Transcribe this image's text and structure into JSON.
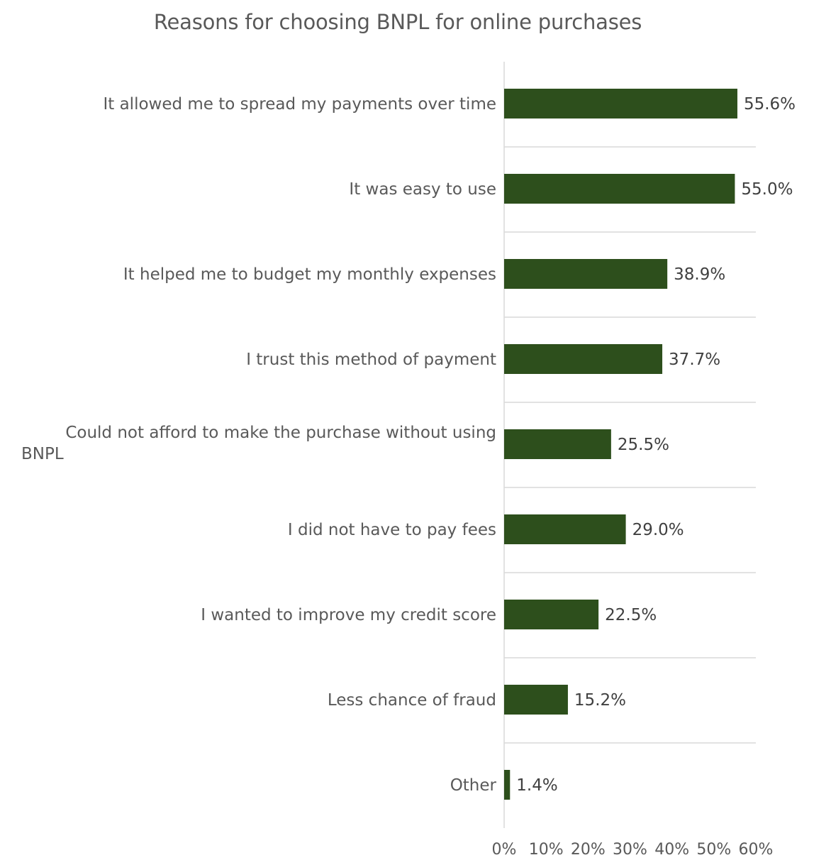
{
  "chart_data": {
    "type": "bar",
    "orientation": "horizontal",
    "title": "Reasons for choosing BNPL for online purchases",
    "categories": [
      "It allowed me to spread my payments over time",
      "It was easy to use",
      "It helped me to budget my monthly expenses",
      "I trust this method of payment",
      "Could not afford to make the purchase without using BNPL",
      "I did not have to pay fees",
      "I wanted to improve my credit score",
      "Less chance of fraud",
      "Other"
    ],
    "category_lines": [
      [
        "It allowed me to spread my payments over time"
      ],
      [
        "It was easy to use"
      ],
      [
        "It helped me to budget my monthly expenses"
      ],
      [
        "I trust this method of payment"
      ],
      [
        "Could not afford to make the purchase without using",
        "BNPL"
      ],
      [
        "I did not have to pay fees"
      ],
      [
        "I wanted to improve my credit score"
      ],
      [
        "Less chance of fraud"
      ],
      [
        "Other"
      ]
    ],
    "values": [
      55.6,
      55.0,
      38.9,
      37.7,
      25.5,
      29.0,
      22.5,
      15.2,
      1.4
    ],
    "value_labels": [
      "55.6%",
      "55.0%",
      "38.9%",
      "37.7%",
      "25.5%",
      "29.0%",
      "22.5%",
      "15.2%",
      "1.4%"
    ],
    "xlim": [
      0,
      60
    ],
    "x_ticks": [
      0,
      10,
      20,
      30,
      40,
      50,
      60
    ],
    "x_tick_labels": [
      "0%",
      "10%",
      "20%",
      "30%",
      "40%",
      "50%",
      "60%"
    ],
    "xlabel": "",
    "ylabel": "",
    "grid": "horizontal separators",
    "legend": "none",
    "colors": {
      "bar": "#2d4f1c",
      "grid": "#d9d9d9",
      "text": "#595959"
    }
  }
}
